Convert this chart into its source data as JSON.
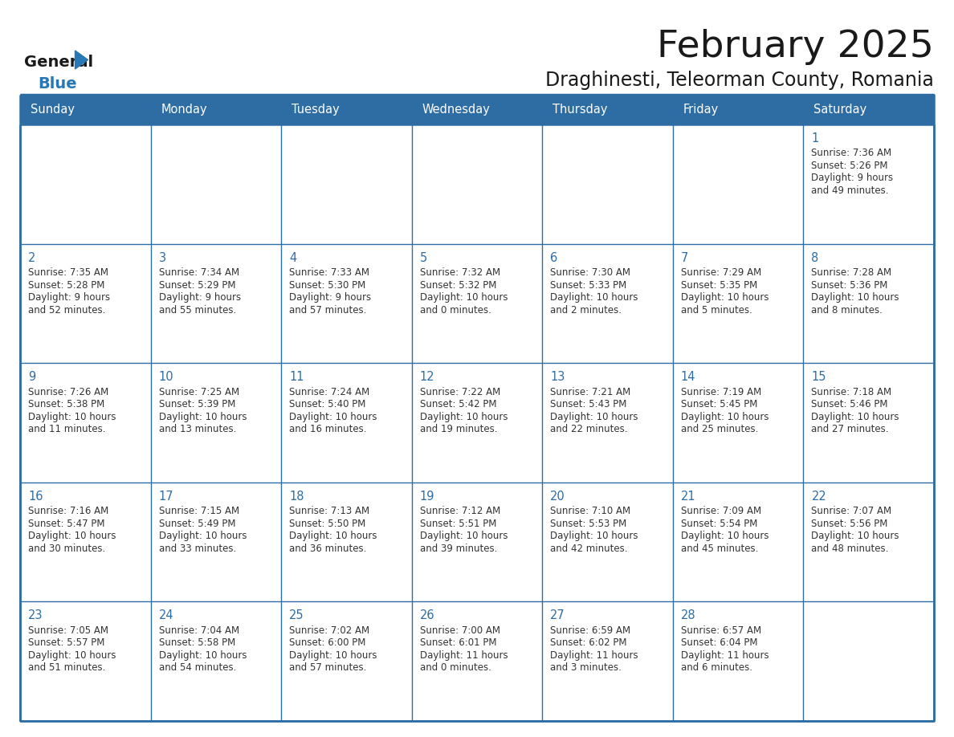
{
  "title": "February 2025",
  "subtitle": "Draghinesti, Teleorman County, Romania",
  "header_bg": "#2E6DA4",
  "header_text": "#FFFFFF",
  "cell_bg": "#FFFFFF",
  "border_color": "#2E6DA4",
  "text_color": "#333333",
  "day_number_color": "#2E6DA4",
  "day_names": [
    "Sunday",
    "Monday",
    "Tuesday",
    "Wednesday",
    "Thursday",
    "Friday",
    "Saturday"
  ],
  "days_data": [
    {
      "day": 1,
      "col": 6,
      "row": 0,
      "sunrise": "7:36 AM",
      "sunset": "5:26 PM",
      "daylight_line1": "Daylight: 9 hours",
      "daylight_line2": "and 49 minutes."
    },
    {
      "day": 2,
      "col": 0,
      "row": 1,
      "sunrise": "7:35 AM",
      "sunset": "5:28 PM",
      "daylight_line1": "Daylight: 9 hours",
      "daylight_line2": "and 52 minutes."
    },
    {
      "day": 3,
      "col": 1,
      "row": 1,
      "sunrise": "7:34 AM",
      "sunset": "5:29 PM",
      "daylight_line1": "Daylight: 9 hours",
      "daylight_line2": "and 55 minutes."
    },
    {
      "day": 4,
      "col": 2,
      "row": 1,
      "sunrise": "7:33 AM",
      "sunset": "5:30 PM",
      "daylight_line1": "Daylight: 9 hours",
      "daylight_line2": "and 57 minutes."
    },
    {
      "day": 5,
      "col": 3,
      "row": 1,
      "sunrise": "7:32 AM",
      "sunset": "5:32 PM",
      "daylight_line1": "Daylight: 10 hours",
      "daylight_line2": "and 0 minutes."
    },
    {
      "day": 6,
      "col": 4,
      "row": 1,
      "sunrise": "7:30 AM",
      "sunset": "5:33 PM",
      "daylight_line1": "Daylight: 10 hours",
      "daylight_line2": "and 2 minutes."
    },
    {
      "day": 7,
      "col": 5,
      "row": 1,
      "sunrise": "7:29 AM",
      "sunset": "5:35 PM",
      "daylight_line1": "Daylight: 10 hours",
      "daylight_line2": "and 5 minutes."
    },
    {
      "day": 8,
      "col": 6,
      "row": 1,
      "sunrise": "7:28 AM",
      "sunset": "5:36 PM",
      "daylight_line1": "Daylight: 10 hours",
      "daylight_line2": "and 8 minutes."
    },
    {
      "day": 9,
      "col": 0,
      "row": 2,
      "sunrise": "7:26 AM",
      "sunset": "5:38 PM",
      "daylight_line1": "Daylight: 10 hours",
      "daylight_line2": "and 11 minutes."
    },
    {
      "day": 10,
      "col": 1,
      "row": 2,
      "sunrise": "7:25 AM",
      "sunset": "5:39 PM",
      "daylight_line1": "Daylight: 10 hours",
      "daylight_line2": "and 13 minutes."
    },
    {
      "day": 11,
      "col": 2,
      "row": 2,
      "sunrise": "7:24 AM",
      "sunset": "5:40 PM",
      "daylight_line1": "Daylight: 10 hours",
      "daylight_line2": "and 16 minutes."
    },
    {
      "day": 12,
      "col": 3,
      "row": 2,
      "sunrise": "7:22 AM",
      "sunset": "5:42 PM",
      "daylight_line1": "Daylight: 10 hours",
      "daylight_line2": "and 19 minutes."
    },
    {
      "day": 13,
      "col": 4,
      "row": 2,
      "sunrise": "7:21 AM",
      "sunset": "5:43 PM",
      "daylight_line1": "Daylight: 10 hours",
      "daylight_line2": "and 22 minutes."
    },
    {
      "day": 14,
      "col": 5,
      "row": 2,
      "sunrise": "7:19 AM",
      "sunset": "5:45 PM",
      "daylight_line1": "Daylight: 10 hours",
      "daylight_line2": "and 25 minutes."
    },
    {
      "day": 15,
      "col": 6,
      "row": 2,
      "sunrise": "7:18 AM",
      "sunset": "5:46 PM",
      "daylight_line1": "Daylight: 10 hours",
      "daylight_line2": "and 27 minutes."
    },
    {
      "day": 16,
      "col": 0,
      "row": 3,
      "sunrise": "7:16 AM",
      "sunset": "5:47 PM",
      "daylight_line1": "Daylight: 10 hours",
      "daylight_line2": "and 30 minutes."
    },
    {
      "day": 17,
      "col": 1,
      "row": 3,
      "sunrise": "7:15 AM",
      "sunset": "5:49 PM",
      "daylight_line1": "Daylight: 10 hours",
      "daylight_line2": "and 33 minutes."
    },
    {
      "day": 18,
      "col": 2,
      "row": 3,
      "sunrise": "7:13 AM",
      "sunset": "5:50 PM",
      "daylight_line1": "Daylight: 10 hours",
      "daylight_line2": "and 36 minutes."
    },
    {
      "day": 19,
      "col": 3,
      "row": 3,
      "sunrise": "7:12 AM",
      "sunset": "5:51 PM",
      "daylight_line1": "Daylight: 10 hours",
      "daylight_line2": "and 39 minutes."
    },
    {
      "day": 20,
      "col": 4,
      "row": 3,
      "sunrise": "7:10 AM",
      "sunset": "5:53 PM",
      "daylight_line1": "Daylight: 10 hours",
      "daylight_line2": "and 42 minutes."
    },
    {
      "day": 21,
      "col": 5,
      "row": 3,
      "sunrise": "7:09 AM",
      "sunset": "5:54 PM",
      "daylight_line1": "Daylight: 10 hours",
      "daylight_line2": "and 45 minutes."
    },
    {
      "day": 22,
      "col": 6,
      "row": 3,
      "sunrise": "7:07 AM",
      "sunset": "5:56 PM",
      "daylight_line1": "Daylight: 10 hours",
      "daylight_line2": "and 48 minutes."
    },
    {
      "day": 23,
      "col": 0,
      "row": 4,
      "sunrise": "7:05 AM",
      "sunset": "5:57 PM",
      "daylight_line1": "Daylight: 10 hours",
      "daylight_line2": "and 51 minutes."
    },
    {
      "day": 24,
      "col": 1,
      "row": 4,
      "sunrise": "7:04 AM",
      "sunset": "5:58 PM",
      "daylight_line1": "Daylight: 10 hours",
      "daylight_line2": "and 54 minutes."
    },
    {
      "day": 25,
      "col": 2,
      "row": 4,
      "sunrise": "7:02 AM",
      "sunset": "6:00 PM",
      "daylight_line1": "Daylight: 10 hours",
      "daylight_line2": "and 57 minutes."
    },
    {
      "day": 26,
      "col": 3,
      "row": 4,
      "sunrise": "7:00 AM",
      "sunset": "6:01 PM",
      "daylight_line1": "Daylight: 11 hours",
      "daylight_line2": "and 0 minutes."
    },
    {
      "day": 27,
      "col": 4,
      "row": 4,
      "sunrise": "6:59 AM",
      "sunset": "6:02 PM",
      "daylight_line1": "Daylight: 11 hours",
      "daylight_line2": "and 3 minutes."
    },
    {
      "day": 28,
      "col": 5,
      "row": 4,
      "sunrise": "6:57 AM",
      "sunset": "6:04 PM",
      "daylight_line1": "Daylight: 11 hours",
      "daylight_line2": "and 6 minutes."
    }
  ],
  "num_rows": 5,
  "logo_color_general": "#1a1a1a",
  "logo_color_blue": "#2778B5",
  "logo_triangle_color": "#2778B5"
}
